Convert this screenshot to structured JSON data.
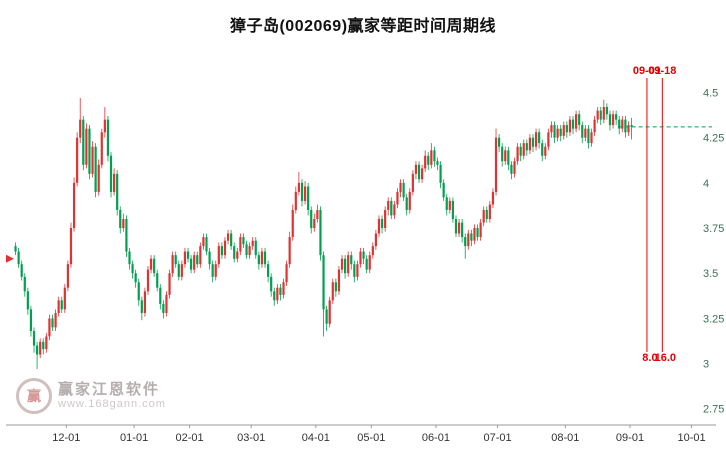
{
  "title": "獐子岛(002069)赢家等距时间周期线",
  "watermark": {
    "brand": "赢家江恩软件",
    "url": "www.168gann.com",
    "logo_char": "赢"
  },
  "chart_data": {
    "type": "candlestick",
    "title": "獐子岛(002069)赢家等距时间周期线",
    "x_labels": [
      "12-01",
      "01-01",
      "02-01",
      "03-01",
      "04-01",
      "05-01",
      "06-01",
      "07-01",
      "08-01",
      "09-01",
      "10-01"
    ],
    "x_label_candle_index": [
      17,
      39,
      57,
      77,
      98,
      116,
      137,
      157,
      179,
      200,
      220
    ],
    "y_ticks": [
      4.5,
      4.25,
      4,
      3.75,
      3.5,
      3.25,
      3,
      2.75
    ],
    "ylim": [
      2.66,
      4.68
    ],
    "grid": false,
    "colors": {
      "up": "#e13232",
      "down": "#00a050",
      "cycle": "#e60000",
      "dashed": "#00a050",
      "y_tick": "#3a7257",
      "x_tick": "#333333",
      "axis": "#9a9a9a",
      "marker": "#e03232"
    },
    "cycle_lines": [
      {
        "label": "09-01",
        "value_label": "8.0",
        "candle_index": 205.5
      },
      {
        "label": "09-18",
        "value_label": "16.0",
        "candle_index": 210.5
      }
    ],
    "horizontal_line": {
      "price": 4.31,
      "style": "dashed",
      "from_candle_index": 196
    },
    "left_marker_price": 3.58,
    "candles": [
      [
        3.65,
        3.67,
        3.6,
        3.62
      ],
      [
        3.62,
        3.64,
        3.53,
        3.55
      ],
      [
        3.55,
        3.57,
        3.46,
        3.48
      ],
      [
        3.48,
        3.5,
        3.37,
        3.4
      ],
      [
        3.4,
        3.42,
        3.27,
        3.3
      ],
      [
        3.3,
        3.32,
        3.15,
        3.18
      ],
      [
        3.18,
        3.2,
        3.06,
        3.1
      ],
      [
        3.1,
        3.12,
        2.97,
        3.05
      ],
      [
        3.05,
        3.14,
        3.03,
        3.12
      ],
      [
        3.12,
        3.14,
        3.05,
        3.08
      ],
      [
        3.08,
        3.17,
        3.06,
        3.15
      ],
      [
        3.15,
        3.27,
        3.13,
        3.25
      ],
      [
        3.25,
        3.27,
        3.18,
        3.2
      ],
      [
        3.2,
        3.3,
        3.18,
        3.28
      ],
      [
        3.28,
        3.37,
        3.26,
        3.35
      ],
      [
        3.35,
        3.37,
        3.28,
        3.3
      ],
      [
        3.3,
        3.44,
        3.28,
        3.42
      ],
      [
        3.42,
        3.57,
        3.4,
        3.55
      ],
      [
        3.55,
        3.78,
        3.53,
        3.75
      ],
      [
        3.75,
        4.03,
        3.73,
        4.0
      ],
      [
        4.0,
        4.28,
        3.98,
        4.25
      ],
      [
        4.25,
        4.47,
        4.22,
        4.35
      ],
      [
        4.35,
        4.37,
        4.07,
        4.1
      ],
      [
        4.1,
        4.33,
        4.08,
        4.3
      ],
      [
        4.3,
        4.32,
        4.02,
        4.05
      ],
      [
        4.05,
        4.23,
        4.03,
        4.2
      ],
      [
        4.2,
        4.22,
        3.92,
        3.95
      ],
      [
        3.95,
        4.13,
        3.93,
        4.1
      ],
      [
        4.1,
        4.3,
        4.08,
        4.28
      ],
      [
        4.28,
        4.42,
        4.25,
        4.35
      ],
      [
        4.35,
        4.37,
        4.12,
        4.15
      ],
      [
        4.15,
        4.17,
        3.92,
        3.95
      ],
      [
        3.95,
        4.08,
        3.93,
        4.05
      ],
      [
        4.05,
        4.07,
        3.82,
        3.85
      ],
      [
        3.85,
        3.87,
        3.72,
        3.75
      ],
      [
        3.75,
        3.83,
        3.73,
        3.8
      ],
      [
        3.8,
        3.82,
        3.59,
        3.62
      ],
      [
        3.62,
        3.64,
        3.52,
        3.55
      ],
      [
        3.55,
        3.57,
        3.47,
        3.5
      ],
      [
        3.5,
        3.52,
        3.42,
        3.45
      ],
      [
        3.45,
        3.47,
        3.32,
        3.35
      ],
      [
        3.35,
        3.37,
        3.24,
        3.28
      ],
      [
        3.28,
        3.42,
        3.26,
        3.4
      ],
      [
        3.4,
        3.54,
        3.38,
        3.52
      ],
      [
        3.52,
        3.6,
        3.5,
        3.58
      ],
      [
        3.58,
        3.6,
        3.48,
        3.5
      ],
      [
        3.5,
        3.52,
        3.4,
        3.42
      ],
      [
        3.42,
        3.44,
        3.3,
        3.33
      ],
      [
        3.33,
        3.35,
        3.25,
        3.28
      ],
      [
        3.28,
        3.4,
        3.26,
        3.38
      ],
      [
        3.38,
        3.52,
        3.36,
        3.5
      ],
      [
        3.5,
        3.62,
        3.48,
        3.6
      ],
      [
        3.6,
        3.62,
        3.53,
        3.55
      ],
      [
        3.55,
        3.57,
        3.46,
        3.48
      ],
      [
        3.48,
        3.57,
        3.46,
        3.55
      ],
      [
        3.55,
        3.64,
        3.53,
        3.62
      ],
      [
        3.62,
        3.64,
        3.56,
        3.58
      ],
      [
        3.58,
        3.6,
        3.5,
        3.52
      ],
      [
        3.52,
        3.62,
        3.5,
        3.6
      ],
      [
        3.6,
        3.62,
        3.53,
        3.55
      ],
      [
        3.55,
        3.67,
        3.53,
        3.65
      ],
      [
        3.65,
        3.72,
        3.63,
        3.7
      ],
      [
        3.7,
        3.72,
        3.6,
        3.62
      ],
      [
        3.62,
        3.64,
        3.52,
        3.55
      ],
      [
        3.55,
        3.57,
        3.45,
        3.48
      ],
      [
        3.48,
        3.57,
        3.46,
        3.55
      ],
      [
        3.55,
        3.67,
        3.53,
        3.65
      ],
      [
        3.65,
        3.67,
        3.58,
        3.6
      ],
      [
        3.6,
        3.7,
        3.58,
        3.68
      ],
      [
        3.68,
        3.74,
        3.66,
        3.72
      ],
      [
        3.72,
        3.74,
        3.63,
        3.65
      ],
      [
        3.65,
        3.67,
        3.56,
        3.58
      ],
      [
        3.58,
        3.64,
        3.56,
        3.62
      ],
      [
        3.62,
        3.72,
        3.6,
        3.7
      ],
      [
        3.7,
        3.72,
        3.64,
        3.66
      ],
      [
        3.66,
        3.68,
        3.58,
        3.6
      ],
      [
        3.6,
        3.67,
        3.58,
        3.65
      ],
      [
        3.65,
        3.7,
        3.63,
        3.68
      ],
      [
        3.68,
        3.7,
        3.58,
        3.6
      ],
      [
        3.6,
        3.62,
        3.52,
        3.55
      ],
      [
        3.55,
        3.64,
        3.53,
        3.62
      ],
      [
        3.62,
        3.64,
        3.53,
        3.55
      ],
      [
        3.55,
        3.57,
        3.45,
        3.48
      ],
      [
        3.48,
        3.5,
        3.37,
        3.4
      ],
      [
        3.4,
        3.42,
        3.32,
        3.35
      ],
      [
        3.35,
        3.44,
        3.33,
        3.42
      ],
      [
        3.42,
        3.44,
        3.35,
        3.38
      ],
      [
        3.38,
        3.47,
        3.36,
        3.45
      ],
      [
        3.45,
        3.57,
        3.43,
        3.55
      ],
      [
        3.55,
        3.73,
        3.53,
        3.7
      ],
      [
        3.7,
        3.88,
        3.68,
        3.85
      ],
      [
        3.85,
        3.98,
        3.83,
        3.95
      ],
      [
        3.95,
        4.06,
        3.93,
        4.0
      ],
      [
        4.0,
        4.02,
        3.87,
        3.9
      ],
      [
        3.9,
        4.01,
        3.88,
        3.98
      ],
      [
        3.98,
        4.0,
        3.82,
        3.85
      ],
      [
        3.85,
        3.87,
        3.72,
        3.75
      ],
      [
        3.75,
        3.83,
        3.73,
        3.8
      ],
      [
        3.8,
        3.88,
        3.78,
        3.85
      ],
      [
        3.85,
        3.87,
        3.57,
        3.6
      ],
      [
        3.6,
        3.62,
        3.15,
        3.3
      ],
      [
        3.3,
        3.32,
        3.18,
        3.22
      ],
      [
        3.22,
        3.37,
        3.2,
        3.35
      ],
      [
        3.35,
        3.47,
        3.33,
        3.45
      ],
      [
        3.45,
        3.47,
        3.37,
        3.4
      ],
      [
        3.4,
        3.54,
        3.38,
        3.52
      ],
      [
        3.52,
        3.6,
        3.5,
        3.58
      ],
      [
        3.58,
        3.6,
        3.47,
        3.5
      ],
      [
        3.5,
        3.62,
        3.48,
        3.6
      ],
      [
        3.6,
        3.62,
        3.52,
        3.55
      ],
      [
        3.55,
        3.57,
        3.45,
        3.48
      ],
      [
        3.48,
        3.57,
        3.46,
        3.55
      ],
      [
        3.55,
        3.64,
        3.53,
        3.62
      ],
      [
        3.62,
        3.64,
        3.55,
        3.58
      ],
      [
        3.58,
        3.6,
        3.5,
        3.52
      ],
      [
        3.52,
        3.62,
        3.5,
        3.6
      ],
      [
        3.6,
        3.67,
        3.58,
        3.65
      ],
      [
        3.65,
        3.74,
        3.63,
        3.72
      ],
      [
        3.72,
        3.82,
        3.7,
        3.8
      ],
      [
        3.8,
        3.82,
        3.72,
        3.75
      ],
      [
        3.75,
        3.87,
        3.73,
        3.85
      ],
      [
        3.85,
        3.92,
        3.82,
        3.9
      ],
      [
        3.9,
        3.92,
        3.8,
        3.82
      ],
      [
        3.82,
        3.9,
        3.8,
        3.88
      ],
      [
        3.88,
        3.97,
        3.86,
        3.95
      ],
      [
        3.95,
        4.02,
        3.92,
        4.0
      ],
      [
        4.0,
        4.02,
        3.9,
        3.92
      ],
      [
        3.92,
        3.94,
        3.82,
        3.85
      ],
      [
        3.85,
        3.97,
        3.83,
        3.95
      ],
      [
        3.95,
        4.07,
        3.93,
        4.05
      ],
      [
        4.05,
        4.12,
        4.02,
        4.1
      ],
      [
        4.1,
        4.12,
        4.0,
        4.02
      ],
      [
        4.02,
        4.1,
        4.0,
        4.08
      ],
      [
        4.08,
        4.18,
        4.06,
        4.15
      ],
      [
        4.15,
        4.17,
        4.07,
        4.1
      ],
      [
        4.1,
        4.22,
        4.08,
        4.18
      ],
      [
        4.18,
        4.2,
        4.09,
        4.12
      ],
      [
        4.12,
        4.14,
        4.07,
        4.1
      ],
      [
        4.1,
        4.12,
        3.97,
        4.0
      ],
      [
        4.0,
        4.02,
        3.9,
        3.92
      ],
      [
        3.92,
        3.94,
        3.82,
        3.85
      ],
      [
        3.85,
        3.92,
        3.83,
        3.9
      ],
      [
        3.9,
        3.92,
        3.78,
        3.8
      ],
      [
        3.8,
        3.82,
        3.7,
        3.72
      ],
      [
        3.72,
        3.8,
        3.7,
        3.78
      ],
      [
        3.78,
        3.8,
        3.67,
        3.7
      ],
      [
        3.7,
        3.72,
        3.58,
        3.65
      ],
      [
        3.65,
        3.74,
        3.63,
        3.72
      ],
      [
        3.72,
        3.74,
        3.65,
        3.68
      ],
      [
        3.68,
        3.77,
        3.66,
        3.75
      ],
      [
        3.75,
        3.77,
        3.68,
        3.7
      ],
      [
        3.7,
        3.8,
        3.68,
        3.78
      ],
      [
        3.78,
        3.87,
        3.76,
        3.85
      ],
      [
        3.85,
        3.87,
        3.78,
        3.8
      ],
      [
        3.8,
        3.9,
        3.78,
        3.88
      ],
      [
        3.88,
        3.97,
        3.86,
        3.95
      ],
      [
        3.95,
        4.3,
        3.93,
        4.25
      ],
      [
        4.25,
        4.27,
        4.17,
        4.2
      ],
      [
        4.2,
        4.22,
        4.09,
        4.12
      ],
      [
        4.12,
        4.2,
        4.1,
        4.18
      ],
      [
        4.18,
        4.2,
        4.07,
        4.1
      ],
      [
        4.1,
        4.12,
        4.02,
        4.05
      ],
      [
        4.05,
        4.14,
        4.03,
        4.12
      ],
      [
        4.12,
        4.22,
        4.1,
        4.2
      ],
      [
        4.2,
        4.22,
        4.12,
        4.15
      ],
      [
        4.15,
        4.24,
        4.13,
        4.22
      ],
      [
        4.22,
        4.24,
        4.15,
        4.18
      ],
      [
        4.18,
        4.27,
        4.16,
        4.25
      ],
      [
        4.25,
        4.27,
        4.17,
        4.2
      ],
      [
        4.2,
        4.3,
        4.18,
        4.28
      ],
      [
        4.28,
        4.3,
        4.19,
        4.22
      ],
      [
        4.22,
        4.24,
        4.12,
        4.15
      ],
      [
        4.15,
        4.22,
        4.13,
        4.2
      ],
      [
        4.2,
        4.3,
        4.18,
        4.28
      ],
      [
        4.28,
        4.34,
        4.25,
        4.32
      ],
      [
        4.32,
        4.34,
        4.22,
        4.25
      ],
      [
        4.25,
        4.32,
        4.23,
        4.3
      ],
      [
        4.3,
        4.32,
        4.23,
        4.26
      ],
      [
        4.26,
        4.34,
        4.24,
        4.32
      ],
      [
        4.32,
        4.34,
        4.25,
        4.28
      ],
      [
        4.28,
        4.37,
        4.26,
        4.35
      ],
      [
        4.35,
        4.37,
        4.27,
        4.3
      ],
      [
        4.3,
        4.4,
        4.28,
        4.38
      ],
      [
        4.38,
        4.4,
        4.29,
        4.32
      ],
      [
        4.32,
        4.34,
        4.22,
        4.25
      ],
      [
        4.25,
        4.32,
        4.23,
        4.3
      ],
      [
        4.3,
        4.32,
        4.19,
        4.22
      ],
      [
        4.22,
        4.3,
        4.2,
        4.28
      ],
      [
        4.28,
        4.37,
        4.26,
        4.35
      ],
      [
        4.35,
        4.42,
        4.33,
        4.4
      ],
      [
        4.4,
        4.42,
        4.32,
        4.35
      ],
      [
        4.35,
        4.46,
        4.33,
        4.42
      ],
      [
        4.42,
        4.44,
        4.35,
        4.38
      ],
      [
        4.38,
        4.4,
        4.29,
        4.32
      ],
      [
        4.32,
        4.4,
        4.3,
        4.38
      ],
      [
        4.38,
        4.4,
        4.32,
        4.35
      ],
      [
        4.35,
        4.37,
        4.27,
        4.3
      ],
      [
        4.3,
        4.37,
        4.28,
        4.35
      ],
      [
        4.35,
        4.37,
        4.25,
        4.28
      ],
      [
        4.28,
        4.34,
        4.26,
        4.32
      ],
      [
        4.32,
        4.36,
        4.24,
        4.31
      ]
    ]
  }
}
